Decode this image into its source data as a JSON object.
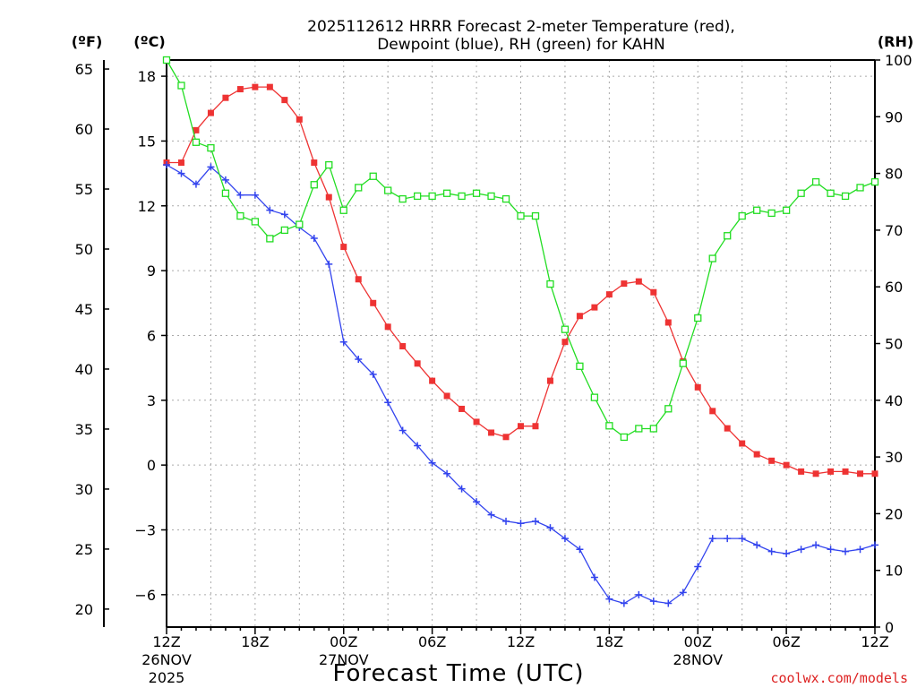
{
  "chart_data": {
    "type": "line",
    "title_line1": "2025112612 HRRR Forecast 2-meter Temperature (red),",
    "title_line2": "Dewpoint (blue), RH (green) for KAHN",
    "xlabel": "Forecast Time (UTC)",
    "credit": "coolwx.com/models",
    "unit_labels": {
      "fahrenheit": "(ºF)",
      "celsius": "(ºC)",
      "rh": "(RH)"
    },
    "colors": {
      "temperature": "#ee3333",
      "dewpoint": "#3344ee",
      "rh": "#22dd22",
      "grid": "#aaaaaa"
    },
    "x_range": [
      0,
      48
    ],
    "y_celsius_range": [
      -7.5,
      18.75
    ],
    "y_rh_range": [
      0,
      100
    ],
    "celsius_ticks": [
      "18",
      "15",
      "12",
      "9",
      "6",
      "3",
      "0",
      "-3",
      "-6"
    ],
    "celsius_tick_values": [
      18,
      15,
      12,
      9,
      6,
      3,
      0,
      -3,
      -6
    ],
    "fahrenheit_ticks": [
      "65",
      "60",
      "55",
      "50",
      "45",
      "40",
      "35",
      "30",
      "25",
      "20"
    ],
    "fahrenheit_tick_values": [
      65,
      60,
      55,
      50,
      45,
      40,
      35,
      30,
      25,
      20
    ],
    "rh_ticks": [
      "100",
      "90",
      "80",
      "70",
      "60",
      "50",
      "40",
      "30",
      "20",
      "10",
      "0"
    ],
    "rh_tick_values": [
      100,
      90,
      80,
      70,
      60,
      50,
      40,
      30,
      20,
      10,
      0
    ],
    "x_ticks": [
      {
        "hour": 0,
        "label": "12Z",
        "sub1": "26NOV",
        "sub2": "2025"
      },
      {
        "hour": 6,
        "label": "18Z",
        "sub1": "",
        "sub2": ""
      },
      {
        "hour": 12,
        "label": "00Z",
        "sub1": "27NOV",
        "sub2": ""
      },
      {
        "hour": 18,
        "label": "06Z",
        "sub1": "",
        "sub2": ""
      },
      {
        "hour": 24,
        "label": "12Z",
        "sub1": "",
        "sub2": ""
      },
      {
        "hour": 30,
        "label": "18Z",
        "sub1": "",
        "sub2": ""
      },
      {
        "hour": 36,
        "label": "00Z",
        "sub1": "28NOV",
        "sub2": ""
      },
      {
        "hour": 42,
        "label": "06Z",
        "sub1": "",
        "sub2": ""
      },
      {
        "hour": 48,
        "label": "12Z",
        "sub1": "",
        "sub2": ""
      }
    ],
    "series": [
      {
        "name": "Temperature",
        "axis": "celsius",
        "marker": "filled-square",
        "x": [
          0,
          1,
          2,
          3,
          4,
          5,
          6,
          7,
          8,
          9,
          10,
          11,
          12,
          13,
          14,
          15,
          16,
          17,
          18,
          19,
          20,
          21,
          22,
          23,
          24,
          25,
          26,
          27,
          28,
          29,
          30,
          31,
          32,
          33,
          34,
          35,
          36,
          37,
          38,
          39,
          40,
          41,
          42,
          43,
          44,
          45,
          46,
          47,
          48
        ],
        "values": [
          14.0,
          14.0,
          15.5,
          16.3,
          17.0,
          17.4,
          17.5,
          17.5,
          16.9,
          16.0,
          14.0,
          12.4,
          10.1,
          8.6,
          7.5,
          6.4,
          5.5,
          4.7,
          3.9,
          3.2,
          2.6,
          2.0,
          1.5,
          1.3,
          1.8,
          1.8,
          3.9,
          5.7,
          6.9,
          7.3,
          7.9,
          8.4,
          8.5,
          8.0,
          6.6,
          4.8,
          3.6,
          2.5,
          1.7,
          1.0,
          0.5,
          0.2,
          0.0,
          -0.3,
          -0.4,
          -0.3,
          -0.3,
          -0.4,
          -0.4
        ]
      },
      {
        "name": "Dewpoint",
        "axis": "celsius",
        "marker": "plus",
        "x": [
          0,
          1,
          2,
          3,
          4,
          5,
          6,
          7,
          8,
          9,
          10,
          11,
          12,
          13,
          14,
          15,
          16,
          17,
          18,
          19,
          20,
          21,
          22,
          23,
          24,
          25,
          26,
          27,
          28,
          29,
          30,
          31,
          32,
          33,
          34,
          35,
          36,
          37,
          38,
          39,
          40,
          41,
          42,
          43,
          44,
          45,
          46,
          47,
          48
        ],
        "values": [
          13.9,
          13.5,
          13.0,
          13.8,
          13.2,
          12.5,
          12.5,
          11.8,
          11.6,
          11.0,
          10.5,
          9.3,
          5.7,
          4.9,
          4.2,
          2.9,
          1.6,
          0.9,
          0.1,
          -0.4,
          -1.1,
          -1.7,
          -2.3,
          -2.6,
          -2.7,
          -2.6,
          -2.9,
          -3.4,
          -3.9,
          -5.2,
          -6.2,
          -6.4,
          -6.0,
          -6.3,
          -6.4,
          -5.9,
          -4.7,
          -3.4,
          -3.4,
          -3.4,
          -3.7,
          -4.0,
          -4.1,
          -3.9,
          -3.7,
          -3.9,
          -4.0,
          -3.9,
          -3.7
        ]
      },
      {
        "name": "RH",
        "axis": "rh",
        "marker": "open-square",
        "x": [
          0,
          1,
          2,
          3,
          4,
          5,
          6,
          7,
          8,
          9,
          10,
          11,
          12,
          13,
          14,
          15,
          16,
          17,
          18,
          19,
          20,
          21,
          22,
          23,
          24,
          25,
          26,
          27,
          28,
          29,
          30,
          31,
          32,
          33,
          34,
          35,
          36,
          37,
          38,
          39,
          40,
          41,
          42,
          43,
          44,
          45,
          46,
          47,
          48
        ],
        "values": [
          100,
          95.5,
          85.5,
          84.5,
          76.5,
          72.5,
          71.5,
          68.5,
          70,
          71,
          78,
          81.5,
          73.5,
          77.5,
          79.5,
          77,
          75.5,
          76,
          76,
          76.5,
          76,
          76.5,
          76,
          75.5,
          72.5,
          72.5,
          60.5,
          52.5,
          46,
          40.5,
          35.5,
          33.5,
          35,
          35,
          38.5,
          46.5,
          54.5,
          65,
          69,
          72.5,
          73.5,
          73,
          73.5,
          76.5,
          78.5,
          76.5,
          76,
          77.5,
          78.5
        ]
      }
    ]
  }
}
